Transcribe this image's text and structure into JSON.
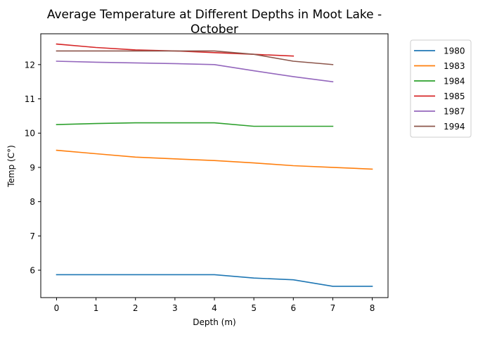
{
  "chart_data": {
    "type": "line",
    "title_lines": [
      "Average Temperature at Different Depths in Moot Lake -",
      "October"
    ],
    "xlabel": "Depth (m)",
    "ylabel": "Temp (C°)",
    "xlim": [
      -0.4,
      8.4
    ],
    "ylim": [
      5.2,
      12.9
    ],
    "xticks": [
      0,
      1,
      2,
      3,
      4,
      5,
      6,
      7,
      8
    ],
    "yticks": [
      6,
      7,
      8,
      9,
      10,
      11,
      12
    ],
    "grid": false,
    "legend_position": "outside-upper-right",
    "series": [
      {
        "name": "1980",
        "color": "#1f77b4",
        "x": [
          0,
          1,
          2,
          3,
          4,
          5,
          6,
          7,
          8
        ],
        "y": [
          5.87,
          5.87,
          5.87,
          5.87,
          5.87,
          5.77,
          5.72,
          5.53,
          5.53
        ]
      },
      {
        "name": "1983",
        "color": "#ff7f0e",
        "x": [
          0,
          1,
          2,
          3,
          4,
          5,
          6,
          7,
          8
        ],
        "y": [
          9.5,
          9.4,
          9.3,
          9.25,
          9.2,
          9.13,
          9.05,
          9.0,
          8.95
        ]
      },
      {
        "name": "1984",
        "color": "#2ca02c",
        "x": [
          0,
          1,
          2,
          3,
          4,
          5,
          6,
          7
        ],
        "y": [
          10.25,
          10.28,
          10.3,
          10.3,
          10.3,
          10.2,
          10.2,
          10.2
        ]
      },
      {
        "name": "1985",
        "color": "#d62728",
        "x": [
          0,
          1,
          2,
          3,
          4,
          5,
          6
        ],
        "y": [
          12.6,
          12.5,
          12.43,
          12.4,
          12.35,
          12.3,
          12.25
        ]
      },
      {
        "name": "1987",
        "color": "#9467bd",
        "x": [
          0,
          1,
          2,
          3,
          4,
          5,
          6,
          7
        ],
        "y": [
          12.1,
          12.07,
          12.05,
          12.03,
          12.0,
          11.82,
          11.65,
          11.5
        ]
      },
      {
        "name": "1994",
        "color": "#8c564b",
        "x": [
          0,
          1,
          2,
          3,
          4,
          5,
          6,
          7
        ],
        "y": [
          12.4,
          12.4,
          12.4,
          12.4,
          12.4,
          12.3,
          12.1,
          12.0
        ]
      }
    ]
  }
}
